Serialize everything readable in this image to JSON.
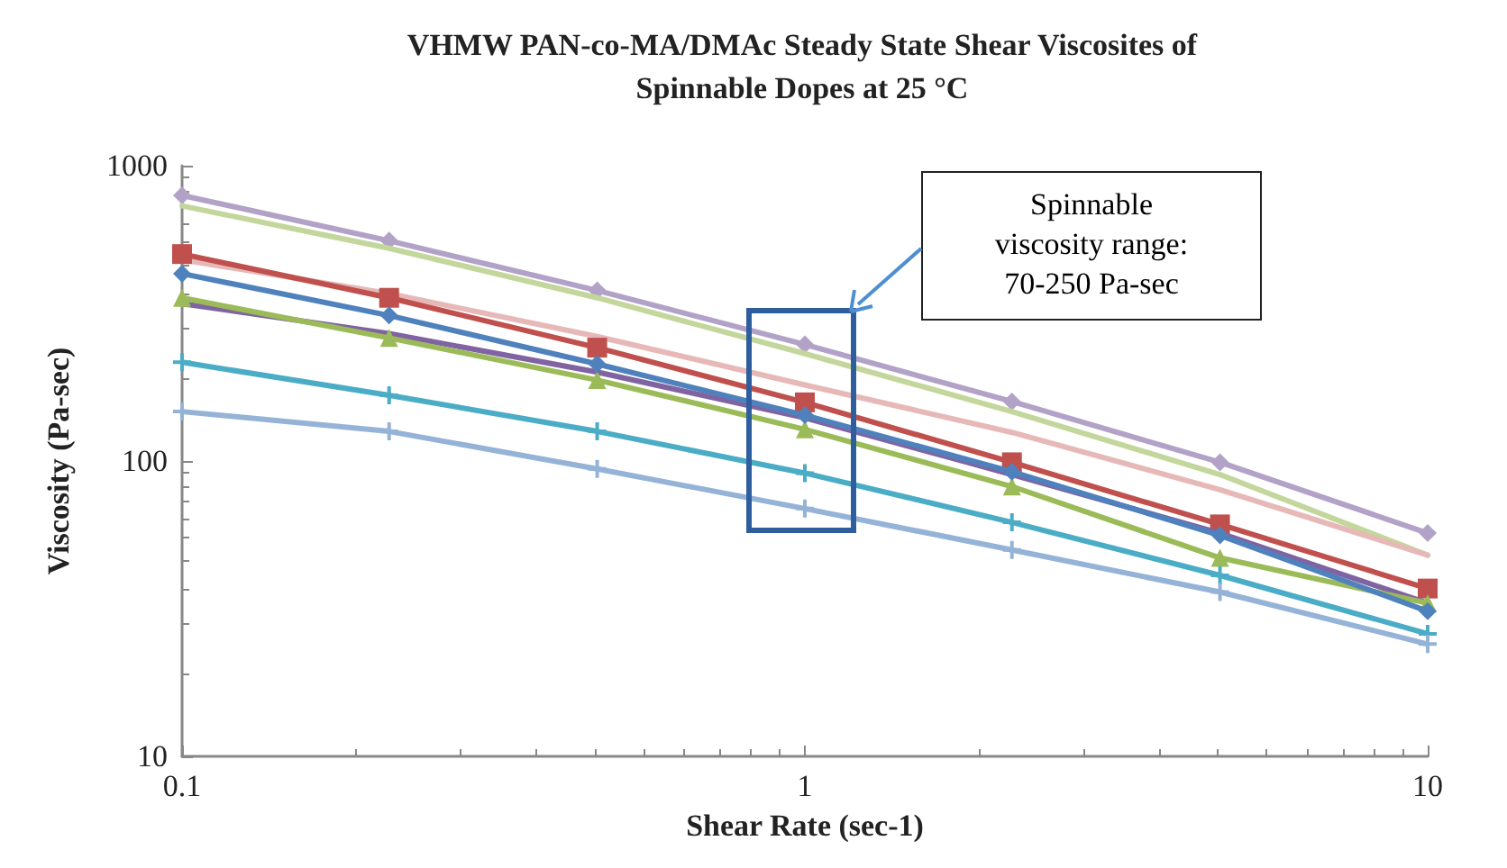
{
  "chart_data": {
    "type": "line",
    "title": "VHMW PAN-co-MA/DMAc Steady State Shear Viscosites of\nSpinnable Dopes at 25 °C",
    "xlabel": "Shear Rate (sec-1)",
    "ylabel": "Viscosity (Pa-sec)",
    "x": [
      0.1,
      0.215,
      0.464,
      1,
      2.15,
      4.64,
      10
    ],
    "series": [
      {
        "color": "#b3a2c7",
        "marker": "diamond",
        "values": [
          793,
          557,
          378,
          248,
          159,
          99,
          57
        ]
      },
      {
        "color": "#c3d69b",
        "marker": "none",
        "values": [
          731,
          525,
          357,
          231,
          147,
          90,
          48
        ]
      },
      {
        "color": "#e6b9b8",
        "marker": "none",
        "values": [
          480,
          369,
          264,
          181,
          125,
          80,
          48
        ]
      },
      {
        "color": "#c0504d",
        "marker": "square",
        "values": [
          502,
          357,
          242,
          158,
          99,
          61,
          37
        ]
      },
      {
        "color": "#8064a2",
        "marker": "none",
        "values": [
          341,
          270,
          200,
          140,
          90,
          57,
          33
        ]
      },
      {
        "color": "#9bbb59",
        "marker": "triangle",
        "values": [
          357,
          261,
          188,
          128,
          82,
          47,
          33
        ]
      },
      {
        "color": "#4f81bd",
        "marker": "diamond",
        "values": [
          431,
          311,
          213,
          143,
          92,
          56,
          31
        ]
      },
      {
        "color": "#4bacc6",
        "marker": "cross",
        "values": [
          216,
          167,
          126,
          91,
          62,
          41,
          26
        ]
      },
      {
        "color": "#95b3d7",
        "marker": "cross",
        "values": [
          147,
          126,
          94,
          69,
          50,
          36,
          24
        ]
      }
    ],
    "log": "xy",
    "xlim": [
      0.1,
      10
    ],
    "xticks": [
      0.1,
      1,
      10
    ],
    "ylim": [
      10,
      1000
    ],
    "yticks": [
      10,
      100,
      1000
    ],
    "grid": false,
    "annotations": [
      "Spinnable\nviscosity range:\n70-250 Pa-sec"
    ]
  }
}
